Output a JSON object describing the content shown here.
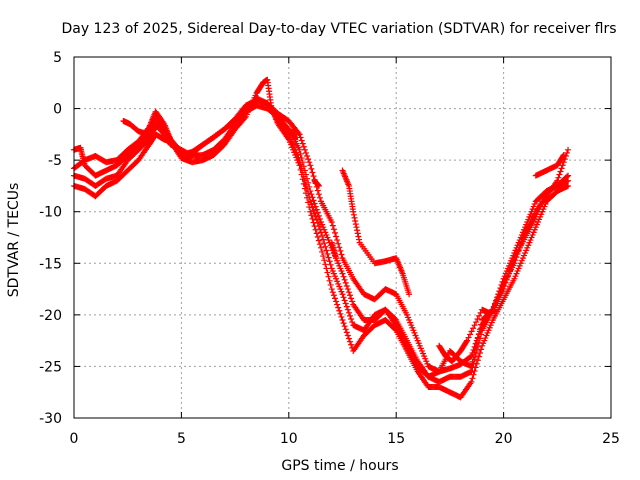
{
  "chart_data": {
    "type": "scatter",
    "title": "Day 123 of 2025, Sidereal Day-to-day VTEC variation (SDTVAR) for receiver flrs",
    "xlabel": "GPS time / hours",
    "ylabel": "SDTVAR / TECUs",
    "xlim": [
      0,
      25
    ],
    "ylim": [
      -30,
      5
    ],
    "x_ticks": [
      0,
      5,
      10,
      15,
      20,
      25
    ],
    "y_ticks": [
      5,
      0,
      -5,
      -10,
      -15,
      -20,
      -25,
      -30
    ],
    "x_tick_labels": [
      "0",
      "5",
      "10",
      "15",
      "20",
      "25"
    ],
    "y_tick_labels": [
      "5",
      "0",
      "-5",
      "-10",
      "-15",
      "-20",
      "-25",
      "-30"
    ],
    "grid": true,
    "legend": "none",
    "marker": "plus",
    "color": "#ff0000",
    "series": [
      {
        "points": [
          [
            0.0,
            -5.8
          ],
          [
            0.5,
            -5.0
          ],
          [
            1.0,
            -4.6
          ],
          [
            1.5,
            -5.2
          ],
          [
            2.0,
            -5.0
          ],
          [
            2.5,
            -4.0
          ],
          [
            3.0,
            -3.2
          ],
          [
            3.5,
            -1.8
          ],
          [
            3.8,
            -0.3
          ],
          [
            4.2,
            -1.5
          ],
          [
            4.5,
            -3.0
          ],
          [
            5.0,
            -4.2
          ],
          [
            5.3,
            -5.0
          ],
          [
            5.7,
            -4.0
          ],
          [
            6.2,
            -3.2
          ],
          [
            7.0,
            -2.0
          ],
          [
            7.5,
            -1.0
          ],
          [
            8.0,
            0.3
          ],
          [
            8.5,
            0.8
          ],
          [
            9.0,
            0.5
          ],
          [
            9.5,
            -0.5
          ],
          [
            10.0,
            -1.2
          ],
          [
            10.5,
            -2.5
          ],
          [
            11.0,
            -5.5
          ],
          [
            11.5,
            -9.0
          ],
          [
            12.0,
            -11.0
          ],
          [
            12.5,
            -14.5
          ],
          [
            13.0,
            -16.5
          ],
          [
            13.5,
            -18.0
          ],
          [
            14.0,
            -18.5
          ],
          [
            14.5,
            -17.5
          ],
          [
            15.0,
            -18.0
          ],
          [
            15.5,
            -20.0
          ],
          [
            16.0,
            -22.5
          ],
          [
            16.5,
            -25.0
          ],
          [
            17.0,
            -25.5
          ],
          [
            17.5,
            -25.2
          ],
          [
            18.0,
            -24.8
          ],
          [
            18.5,
            -24.0
          ],
          [
            19.0,
            -21.0
          ],
          [
            19.5,
            -19.5
          ],
          [
            20.0,
            -16.5
          ],
          [
            20.5,
            -14.0
          ],
          [
            21.0,
            -11.5
          ],
          [
            21.5,
            -9.0
          ],
          [
            22.0,
            -8.0
          ],
          [
            22.5,
            -7.5
          ],
          [
            23.0,
            -6.5
          ]
        ]
      },
      {
        "points": [
          [
            0.0,
            -4.0
          ],
          [
            0.3,
            -3.8
          ],
          [
            0.5,
            -5.5
          ],
          [
            1.0,
            -6.5
          ],
          [
            1.5,
            -6.0
          ],
          [
            2.0,
            -5.5
          ],
          [
            2.5,
            -4.5
          ],
          [
            3.0,
            -3.5
          ],
          [
            3.5,
            -2.5
          ],
          [
            3.8,
            -0.8
          ],
          [
            4.2,
            -2.0
          ],
          [
            4.5,
            -3.0
          ],
          [
            5.0,
            -4.5
          ],
          [
            5.5,
            -4.2
          ],
          [
            6.0,
            -3.5
          ],
          [
            6.5,
            -2.8
          ],
          [
            7.0,
            -2.0
          ],
          [
            7.5,
            -1.2
          ],
          [
            8.0,
            -0.3
          ],
          [
            8.5,
            0.3
          ],
          [
            9.0,
            0.0
          ],
          [
            9.5,
            -0.8
          ],
          [
            10.0,
            -2.0
          ],
          [
            10.5,
            -4.0
          ],
          [
            11.0,
            -8.0
          ],
          [
            11.5,
            -11.0
          ],
          [
            12.0,
            -13.5
          ],
          [
            12.5,
            -16.0
          ],
          [
            13.0,
            -19.0
          ],
          [
            13.5,
            -20.5
          ],
          [
            14.0,
            -20.5
          ],
          [
            14.5,
            -19.5
          ],
          [
            15.0,
            -20.5
          ],
          [
            15.5,
            -22.5
          ],
          [
            16.0,
            -24.5
          ],
          [
            16.5,
            -26.0
          ],
          [
            17.0,
            -26.5
          ],
          [
            17.5,
            -26.0
          ],
          [
            18.0,
            -26.0
          ],
          [
            18.5,
            -25.5
          ],
          [
            19.0,
            -21.5
          ],
          [
            19.5,
            -19.5
          ],
          [
            20.0,
            -17.5
          ],
          [
            20.5,
            -14.5
          ],
          [
            21.0,
            -12.5
          ],
          [
            21.5,
            -10.5
          ],
          [
            22.0,
            -8.0
          ],
          [
            22.5,
            -7.5
          ],
          [
            23.0,
            -7.0
          ]
        ]
      },
      {
        "points": [
          [
            0.0,
            -7.5
          ],
          [
            0.5,
            -7.8
          ],
          [
            1.0,
            -8.5
          ],
          [
            1.5,
            -7.5
          ],
          [
            2.0,
            -7.0
          ],
          [
            2.5,
            -6.0
          ],
          [
            3.0,
            -5.0
          ],
          [
            3.5,
            -3.5
          ],
          [
            3.8,
            -2.5
          ],
          [
            4.2,
            -3.0
          ],
          [
            4.5,
            -3.2
          ],
          [
            5.0,
            -4.8
          ],
          [
            5.5,
            -5.2
          ],
          [
            6.0,
            -5.0
          ],
          [
            6.5,
            -4.5
          ],
          [
            7.0,
            -3.5
          ],
          [
            7.5,
            -2.0
          ],
          [
            8.0,
            -0.8
          ],
          [
            8.5,
            1.5
          ],
          [
            8.8,
            2.5
          ],
          [
            9.0,
            2.8
          ],
          [
            9.2,
            0.0
          ],
          [
            9.5,
            -1.5
          ],
          [
            10.0,
            -3.0
          ],
          [
            10.5,
            -5.5
          ],
          [
            11.0,
            -10.0
          ],
          [
            11.5,
            -13.5
          ],
          [
            12.0,
            -17.5
          ],
          [
            12.5,
            -20.5
          ],
          [
            13.0,
            -23.5
          ],
          [
            13.5,
            -22.0
          ],
          [
            14.0,
            -21.0
          ],
          [
            14.5,
            -20.5
          ],
          [
            15.0,
            -21.5
          ],
          [
            15.5,
            -23.5
          ],
          [
            16.0,
            -25.5
          ],
          [
            16.5,
            -27.0
          ],
          [
            17.0,
            -27.0
          ],
          [
            17.5,
            -27.5
          ],
          [
            18.0,
            -28.0
          ],
          [
            18.5,
            -26.5
          ],
          [
            19.0,
            -23.0
          ],
          [
            19.5,
            -20.5
          ],
          [
            20.0,
            -18.5
          ],
          [
            20.5,
            -16.5
          ],
          [
            21.0,
            -14.0
          ],
          [
            21.5,
            -11.5
          ],
          [
            22.0,
            -9.0
          ],
          [
            22.5,
            -8.0
          ],
          [
            23.0,
            -7.5
          ]
        ]
      },
      {
        "points": [
          [
            0.0,
            -6.5
          ],
          [
            0.5,
            -6.8
          ],
          [
            1.0,
            -7.5
          ],
          [
            1.5,
            -6.8
          ],
          [
            2.0,
            -6.5
          ],
          [
            2.5,
            -5.0
          ],
          [
            3.0,
            -4.0
          ],
          [
            3.5,
            -3.0
          ],
          [
            3.8,
            -1.5
          ],
          [
            4.2,
            -2.5
          ],
          [
            4.5,
            -3.5
          ],
          [
            5.0,
            -4.0
          ],
          [
            5.5,
            -4.6
          ],
          [
            6.0,
            -4.5
          ],
          [
            6.5,
            -4.0
          ],
          [
            7.0,
            -3.0
          ],
          [
            7.5,
            -1.5
          ],
          [
            8.0,
            -0.2
          ],
          [
            8.5,
            1.0
          ],
          [
            9.0,
            0.5
          ],
          [
            9.5,
            -1.0
          ],
          [
            10.0,
            -2.5
          ],
          [
            10.5,
            -5.0
          ],
          [
            11.0,
            -9.0
          ],
          [
            11.5,
            -12.0
          ],
          [
            12.0,
            -15.5
          ],
          [
            12.5,
            -18.0
          ],
          [
            13.0,
            -21.0
          ],
          [
            13.5,
            -21.5
          ],
          [
            14.0,
            -20.0
          ],
          [
            14.5,
            -19.5
          ],
          [
            15.0,
            -21.0
          ],
          [
            15.5,
            -23.0
          ],
          [
            16.0,
            -25.0
          ],
          [
            16.5,
            -26.0
          ],
          [
            17.0,
            -25.5
          ],
          [
            17.5,
            -23.5
          ],
          [
            18.0,
            -24.5
          ],
          [
            18.5,
            -25.0
          ],
          [
            19.0,
            -20.5
          ],
          [
            19.5,
            -19.5
          ],
          [
            20.0,
            -17.0
          ],
          [
            20.5,
            -15.0
          ],
          [
            21.0,
            -12.0
          ],
          [
            21.5,
            -10.0
          ],
          [
            22.0,
            -8.5
          ],
          [
            22.5,
            -7.0
          ],
          [
            23.0,
            -4.0
          ]
        ]
      },
      {
        "points": [
          [
            2.3,
            -1.2
          ],
          [
            2.6,
            -1.5
          ],
          [
            3.0,
            -2.2
          ],
          [
            3.5,
            -2.5
          ],
          [
            4.0,
            -1.5
          ],
          [
            11.2,
            -7.0
          ],
          [
            11.4,
            -7.5
          ],
          [
            12.5,
            -6.0
          ],
          [
            12.8,
            -7.5
          ],
          [
            13.0,
            -10.0
          ],
          [
            13.3,
            -13.0
          ],
          [
            14.0,
            -15.0
          ],
          [
            14.5,
            -14.8
          ],
          [
            15.0,
            -14.5
          ],
          [
            15.3,
            -16.0
          ],
          [
            15.6,
            -18.0
          ],
          [
            12.0,
            -13.0
          ],
          [
            12.2,
            -14.5
          ],
          [
            10.2,
            -2.0
          ],
          [
            10.3,
            -3.0
          ],
          [
            17.0,
            -23.0
          ],
          [
            17.3,
            -24.0
          ],
          [
            17.6,
            -24.5
          ],
          [
            18.0,
            -23.5
          ],
          [
            18.3,
            -22.5
          ],
          [
            19.0,
            -19.5
          ],
          [
            19.3,
            -19.8
          ],
          [
            19.6,
            -19.5
          ],
          [
            21.5,
            -6.5
          ],
          [
            22.0,
            -6.0
          ],
          [
            22.5,
            -5.5
          ],
          [
            22.8,
            -4.5
          ]
        ]
      }
    ]
  }
}
